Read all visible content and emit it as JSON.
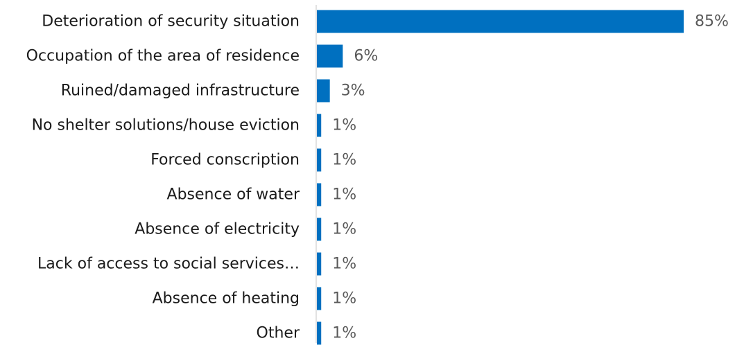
{
  "chart_data": {
    "type": "bar",
    "orientation": "horizontal",
    "title": "",
    "xlabel": "",
    "ylabel": "",
    "categories": [
      "Deterioration of security situation",
      "Occupation of the area of residence",
      "Ruined/damaged infrastructure",
      "No shelter solutions/house eviction",
      "Forced conscription",
      "Absence of water",
      "Absence of electricity",
      "Lack of access to social services…",
      "Absence of heating",
      "Other"
    ],
    "values": [
      85,
      6,
      3,
      1,
      1,
      1,
      1,
      1,
      1,
      1
    ],
    "value_labels": [
      "85%",
      "6%",
      "3%",
      "1%",
      "1%",
      "1%",
      "1%",
      "1%",
      "1%",
      "1%"
    ],
    "unit": "%",
    "xlim": [
      0,
      85
    ],
    "grid": false,
    "legend": "none",
    "colors": {
      "bar": "#0070c0",
      "axis": "#d9d9d9",
      "category_text": "#1a1a1a",
      "value_text": "#595959"
    }
  }
}
